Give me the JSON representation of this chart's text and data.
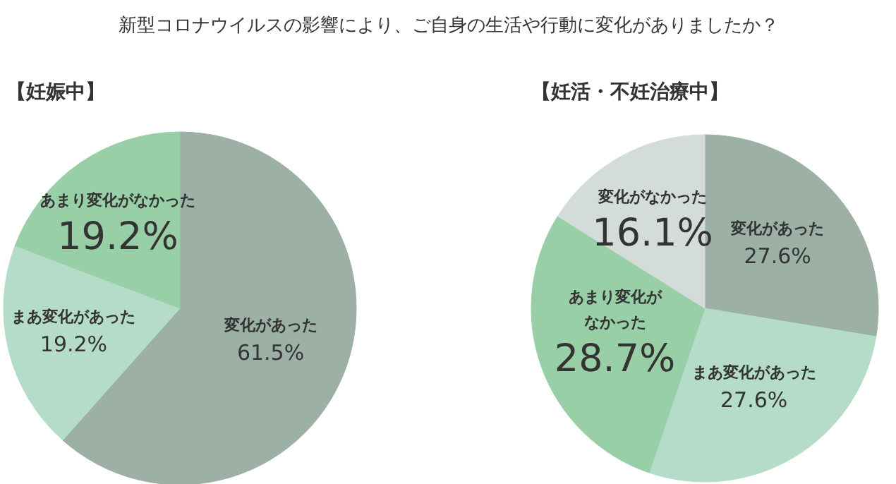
{
  "chart_data": [
    {
      "type": "pie",
      "title": "新型コロナウイルスの影響により、ご自身の生活や行動に変化がありましたか？",
      "subtitle": "【妊娠中】",
      "categories": [
        "変化があった",
        "まあ変化があった",
        "あまり変化がなかった"
      ],
      "values": [
        61.5,
        19.2,
        19.2
      ],
      "colors": [
        "#9cb0a6",
        "#b4dcc8",
        "#98cfa7"
      ],
      "value_labels": [
        "61.5%",
        "19.2%",
        "19.2%"
      ]
    },
    {
      "type": "pie",
      "subtitle": "【妊活・不妊治療中】",
      "categories": [
        "変化があった",
        "まあ変化があった",
        "あまり変化がなかった",
        "変化がなかった"
      ],
      "values": [
        27.6,
        27.6,
        28.7,
        16.1
      ],
      "colors": [
        "#9cb0a6",
        "#b4dcc8",
        "#98cfa7",
        "#d3dcd8"
      ],
      "value_labels": [
        "27.6%",
        "27.6%",
        "28.7%",
        "16.1%"
      ]
    }
  ]
}
